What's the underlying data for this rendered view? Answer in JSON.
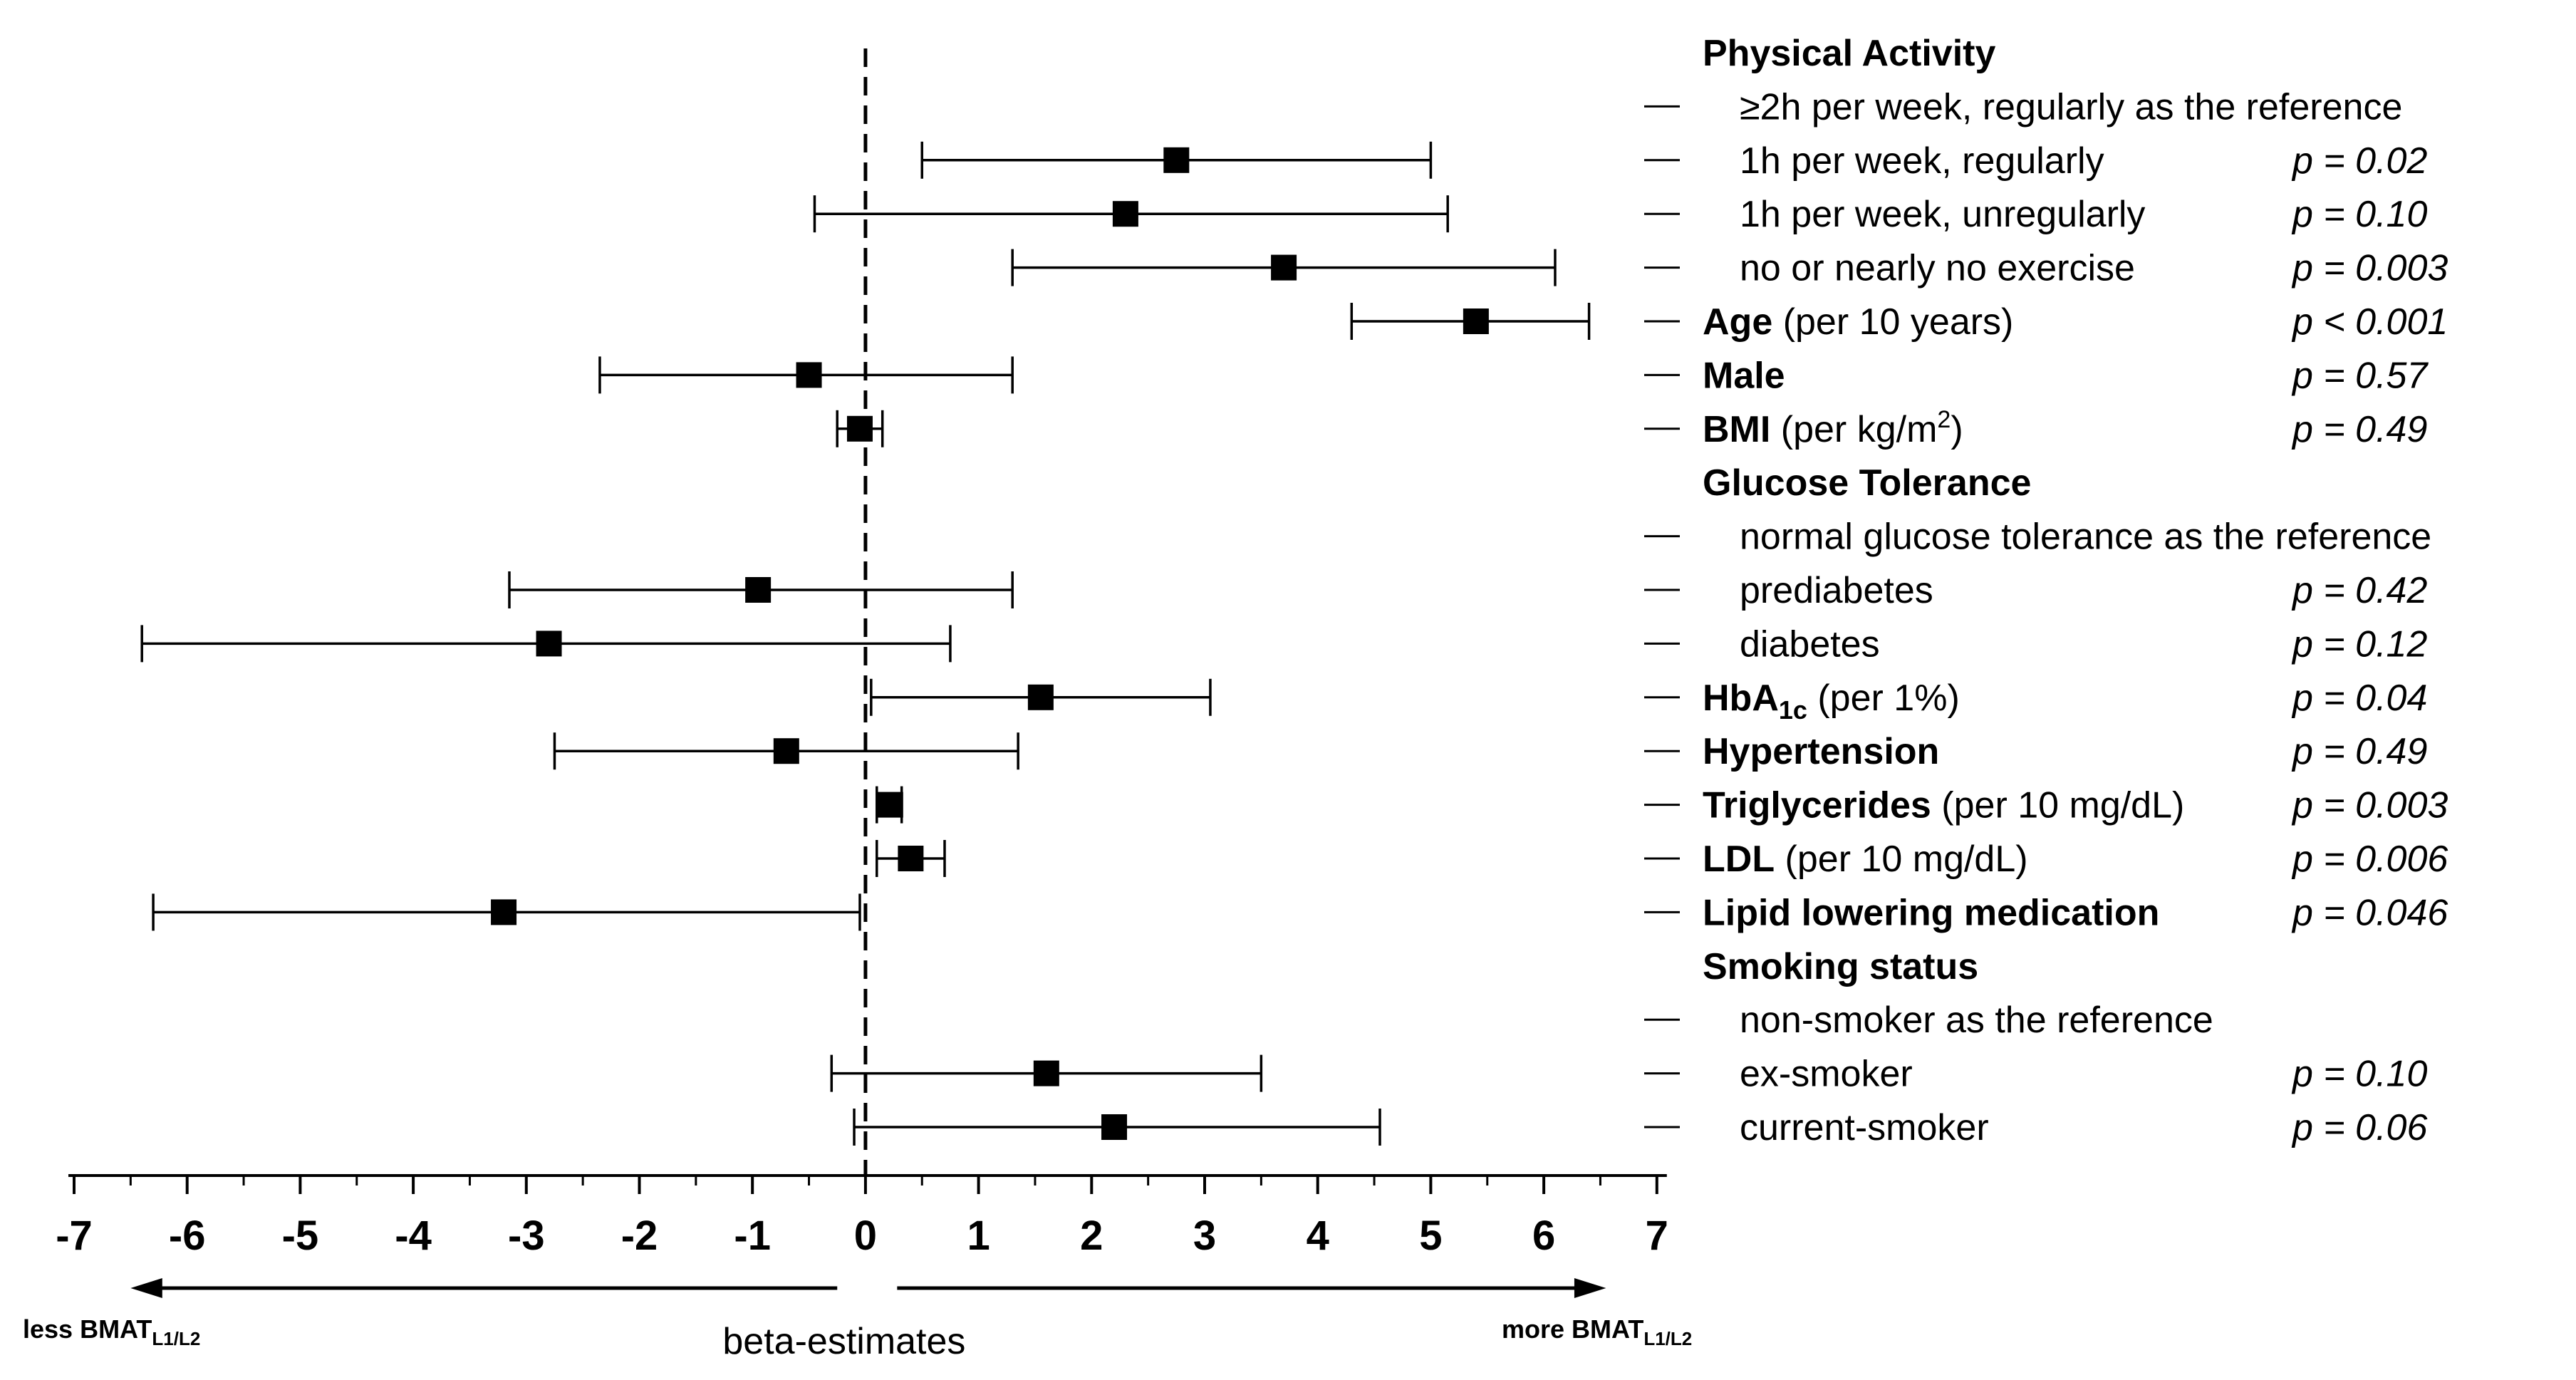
{
  "chart_data": {
    "type": "forest",
    "xlabel": "beta-estimates",
    "xlim": [
      -7,
      7
    ],
    "xticks": [
      "-7",
      "-6",
      "-5",
      "-4",
      "-3",
      "-2",
      "-1",
      "0",
      "1",
      "2",
      "3",
      "4",
      "5",
      "6",
      "7"
    ],
    "reference_line": 0,
    "direction_left": {
      "text": "less BMAT",
      "sub": "L1/L2"
    },
    "direction_right": {
      "text": "more BMAT",
      "sub": "L1/L2"
    },
    "rows": [
      {
        "bold": "Physical Activity",
        "text": "",
        "indent": false,
        "dash": false,
        "p": "",
        "est": null,
        "lo": null,
        "hi": null
      },
      {
        "bold": "",
        "text": "≥2h per week, regularly as the reference",
        "indent": true,
        "dash": true,
        "p": "",
        "est": null,
        "lo": null,
        "hi": null
      },
      {
        "bold": "",
        "text": "1h per week, regularly",
        "indent": true,
        "dash": true,
        "p": "p = 0.02",
        "est": 2.75,
        "lo": 0.5,
        "hi": 5.0
      },
      {
        "bold": "",
        "text": "1h per week, unregularly",
        "indent": true,
        "dash": true,
        "p": "p = 0.10",
        "est": 2.3,
        "lo": -0.45,
        "hi": 5.15
      },
      {
        "bold": "",
        "text": "no or nearly no exercise",
        "indent": true,
        "dash": true,
        "p": "p = 0.003",
        "est": 3.7,
        "lo": 1.3,
        "hi": 6.1
      },
      {
        "bold": "Age",
        "text": " (per 10 years)",
        "indent": false,
        "dash": true,
        "p": "p < 0.001",
        "est": 5.4,
        "lo": 4.3,
        "hi": 6.4
      },
      {
        "bold": "Male",
        "text": "",
        "indent": false,
        "dash": true,
        "p": "p = 0.57",
        "est": -0.5,
        "lo": -2.35,
        "hi": 1.3
      },
      {
        "bold": "BMI",
        "text": " (per kg/m",
        "sup": "2",
        "after": ")",
        "indent": false,
        "dash": true,
        "p": "p = 0.49",
        "est": -0.05,
        "lo": -0.25,
        "hi": 0.15
      },
      {
        "bold": "Glucose Tolerance",
        "text": "",
        "indent": false,
        "dash": false,
        "p": "",
        "est": null,
        "lo": null,
        "hi": null
      },
      {
        "bold": "",
        "text": "normal glucose tolerance as the reference",
        "indent": true,
        "dash": true,
        "p": "",
        "est": null,
        "lo": null,
        "hi": null
      },
      {
        "bold": "",
        "text": "prediabetes",
        "indent": true,
        "dash": true,
        "p": "p = 0.42",
        "est": -0.95,
        "lo": -3.15,
        "hi": 1.3
      },
      {
        "bold": "",
        "text": "diabetes",
        "indent": true,
        "dash": true,
        "p": "p = 0.12",
        "est": -2.8,
        "lo": -6.4,
        "hi": 0.75
      },
      {
        "bold": "HbA",
        "boldsub": "1c",
        "text": " (per 1%)",
        "indent": false,
        "dash": true,
        "p": "p = 0.04",
        "est": 1.55,
        "lo": 0.05,
        "hi": 3.05
      },
      {
        "bold": "Hypertension",
        "text": "",
        "indent": false,
        "dash": true,
        "p": "p = 0.49",
        "est": -0.7,
        "lo": -2.75,
        "hi": 1.35
      },
      {
        "bold": "Triglycerides",
        "text": " (per 10 mg/dL)",
        "indent": false,
        "dash": true,
        "p": "p = 0.003",
        "est": 0.22,
        "lo": 0.1,
        "hi": 0.32
      },
      {
        "bold": "LDL",
        "text": " (per 10 mg/dL)",
        "indent": false,
        "dash": true,
        "p": "p = 0.006",
        "est": 0.4,
        "lo": 0.1,
        "hi": 0.7
      },
      {
        "bold": "Lipid lowering medication",
        "text": "",
        "indent": false,
        "dash": true,
        "p": "p = 0.046",
        "est": -3.2,
        "lo": -6.3,
        "hi": -0.05
      },
      {
        "bold": "Smoking status",
        "text": "",
        "indent": false,
        "dash": false,
        "p": "",
        "est": null,
        "lo": null,
        "hi": null
      },
      {
        "bold": "",
        "text": "non-smoker as the reference",
        "indent": true,
        "dash": true,
        "p": "",
        "est": null,
        "lo": null,
        "hi": null
      },
      {
        "bold": "",
        "text": "ex-smoker",
        "indent": true,
        "dash": true,
        "p": "p = 0.10",
        "est": 1.6,
        "lo": -0.3,
        "hi": 3.5
      },
      {
        "bold": "",
        "text": "current-smoker",
        "indent": true,
        "dash": true,
        "p": "p = 0.06",
        "est": 2.2,
        "lo": -0.1,
        "hi": 4.55
      }
    ]
  }
}
